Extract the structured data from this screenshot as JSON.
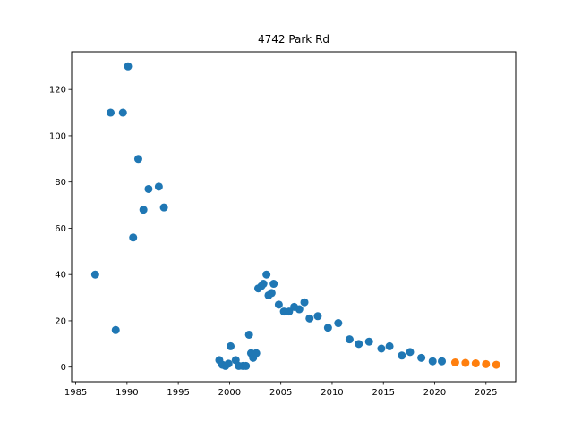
{
  "chart_data": {
    "type": "scatter",
    "title": "4742 Park Rd",
    "xlabel": "",
    "ylabel": "",
    "xlim": [
      1984.6,
      2027.9
    ],
    "ylim": [
      -6.3,
      136.3
    ],
    "x_ticks": [
      1985,
      1990,
      1995,
      2000,
      2005,
      2010,
      2015,
      2020,
      2025
    ],
    "y_ticks": [
      0,
      20,
      40,
      60,
      80,
      100,
      120
    ],
    "grid": false,
    "legend": "none",
    "series": [
      {
        "color": "#1f77b4",
        "points": [
          [
            1986.9,
            40
          ],
          [
            1988.4,
            110
          ],
          [
            1988.9,
            16
          ],
          [
            1989.6,
            110
          ],
          [
            1990.1,
            130
          ],
          [
            1990.6,
            56
          ],
          [
            1991.1,
            90
          ],
          [
            1991.6,
            68
          ],
          [
            1992.1,
            77
          ],
          [
            1993.1,
            78
          ],
          [
            1993.6,
            69
          ],
          [
            1999.0,
            3
          ],
          [
            1999.3,
            1
          ],
          [
            1999.6,
            0.5
          ],
          [
            1999.9,
            1.5
          ],
          [
            2000.1,
            9
          ],
          [
            2000.6,
            3
          ],
          [
            2000.9,
            0.5
          ],
          [
            2001.3,
            0.5
          ],
          [
            2001.6,
            0.5
          ],
          [
            2001.9,
            14
          ],
          [
            2002.1,
            6
          ],
          [
            2002.3,
            4
          ],
          [
            2002.6,
            6
          ],
          [
            2002.8,
            34
          ],
          [
            2003.1,
            35
          ],
          [
            2003.3,
            36
          ],
          [
            2003.6,
            40
          ],
          [
            2003.8,
            31
          ],
          [
            2004.1,
            32
          ],
          [
            2004.3,
            36
          ],
          [
            2004.8,
            27
          ],
          [
            2005.3,
            24
          ],
          [
            2005.8,
            24
          ],
          [
            2006.3,
            26
          ],
          [
            2006.8,
            25
          ],
          [
            2007.3,
            28
          ],
          [
            2007.8,
            21
          ],
          [
            2008.6,
            22
          ],
          [
            2009.6,
            17
          ],
          [
            2010.6,
            19
          ],
          [
            2011.7,
            12
          ],
          [
            2012.6,
            10
          ],
          [
            2013.6,
            11
          ],
          [
            2014.8,
            8
          ],
          [
            2015.6,
            9
          ],
          [
            2016.8,
            5
          ],
          [
            2017.6,
            6.5
          ],
          [
            2018.7,
            4
          ],
          [
            2019.8,
            2.5
          ],
          [
            2020.7,
            2.5
          ]
        ]
      },
      {
        "color": "#ff7f0e",
        "points": [
          [
            2022.0,
            2
          ],
          [
            2023.0,
            1.8
          ],
          [
            2024.0,
            1.6
          ],
          [
            2025.0,
            1.3
          ],
          [
            2026.0,
            1.0
          ]
        ]
      }
    ]
  }
}
